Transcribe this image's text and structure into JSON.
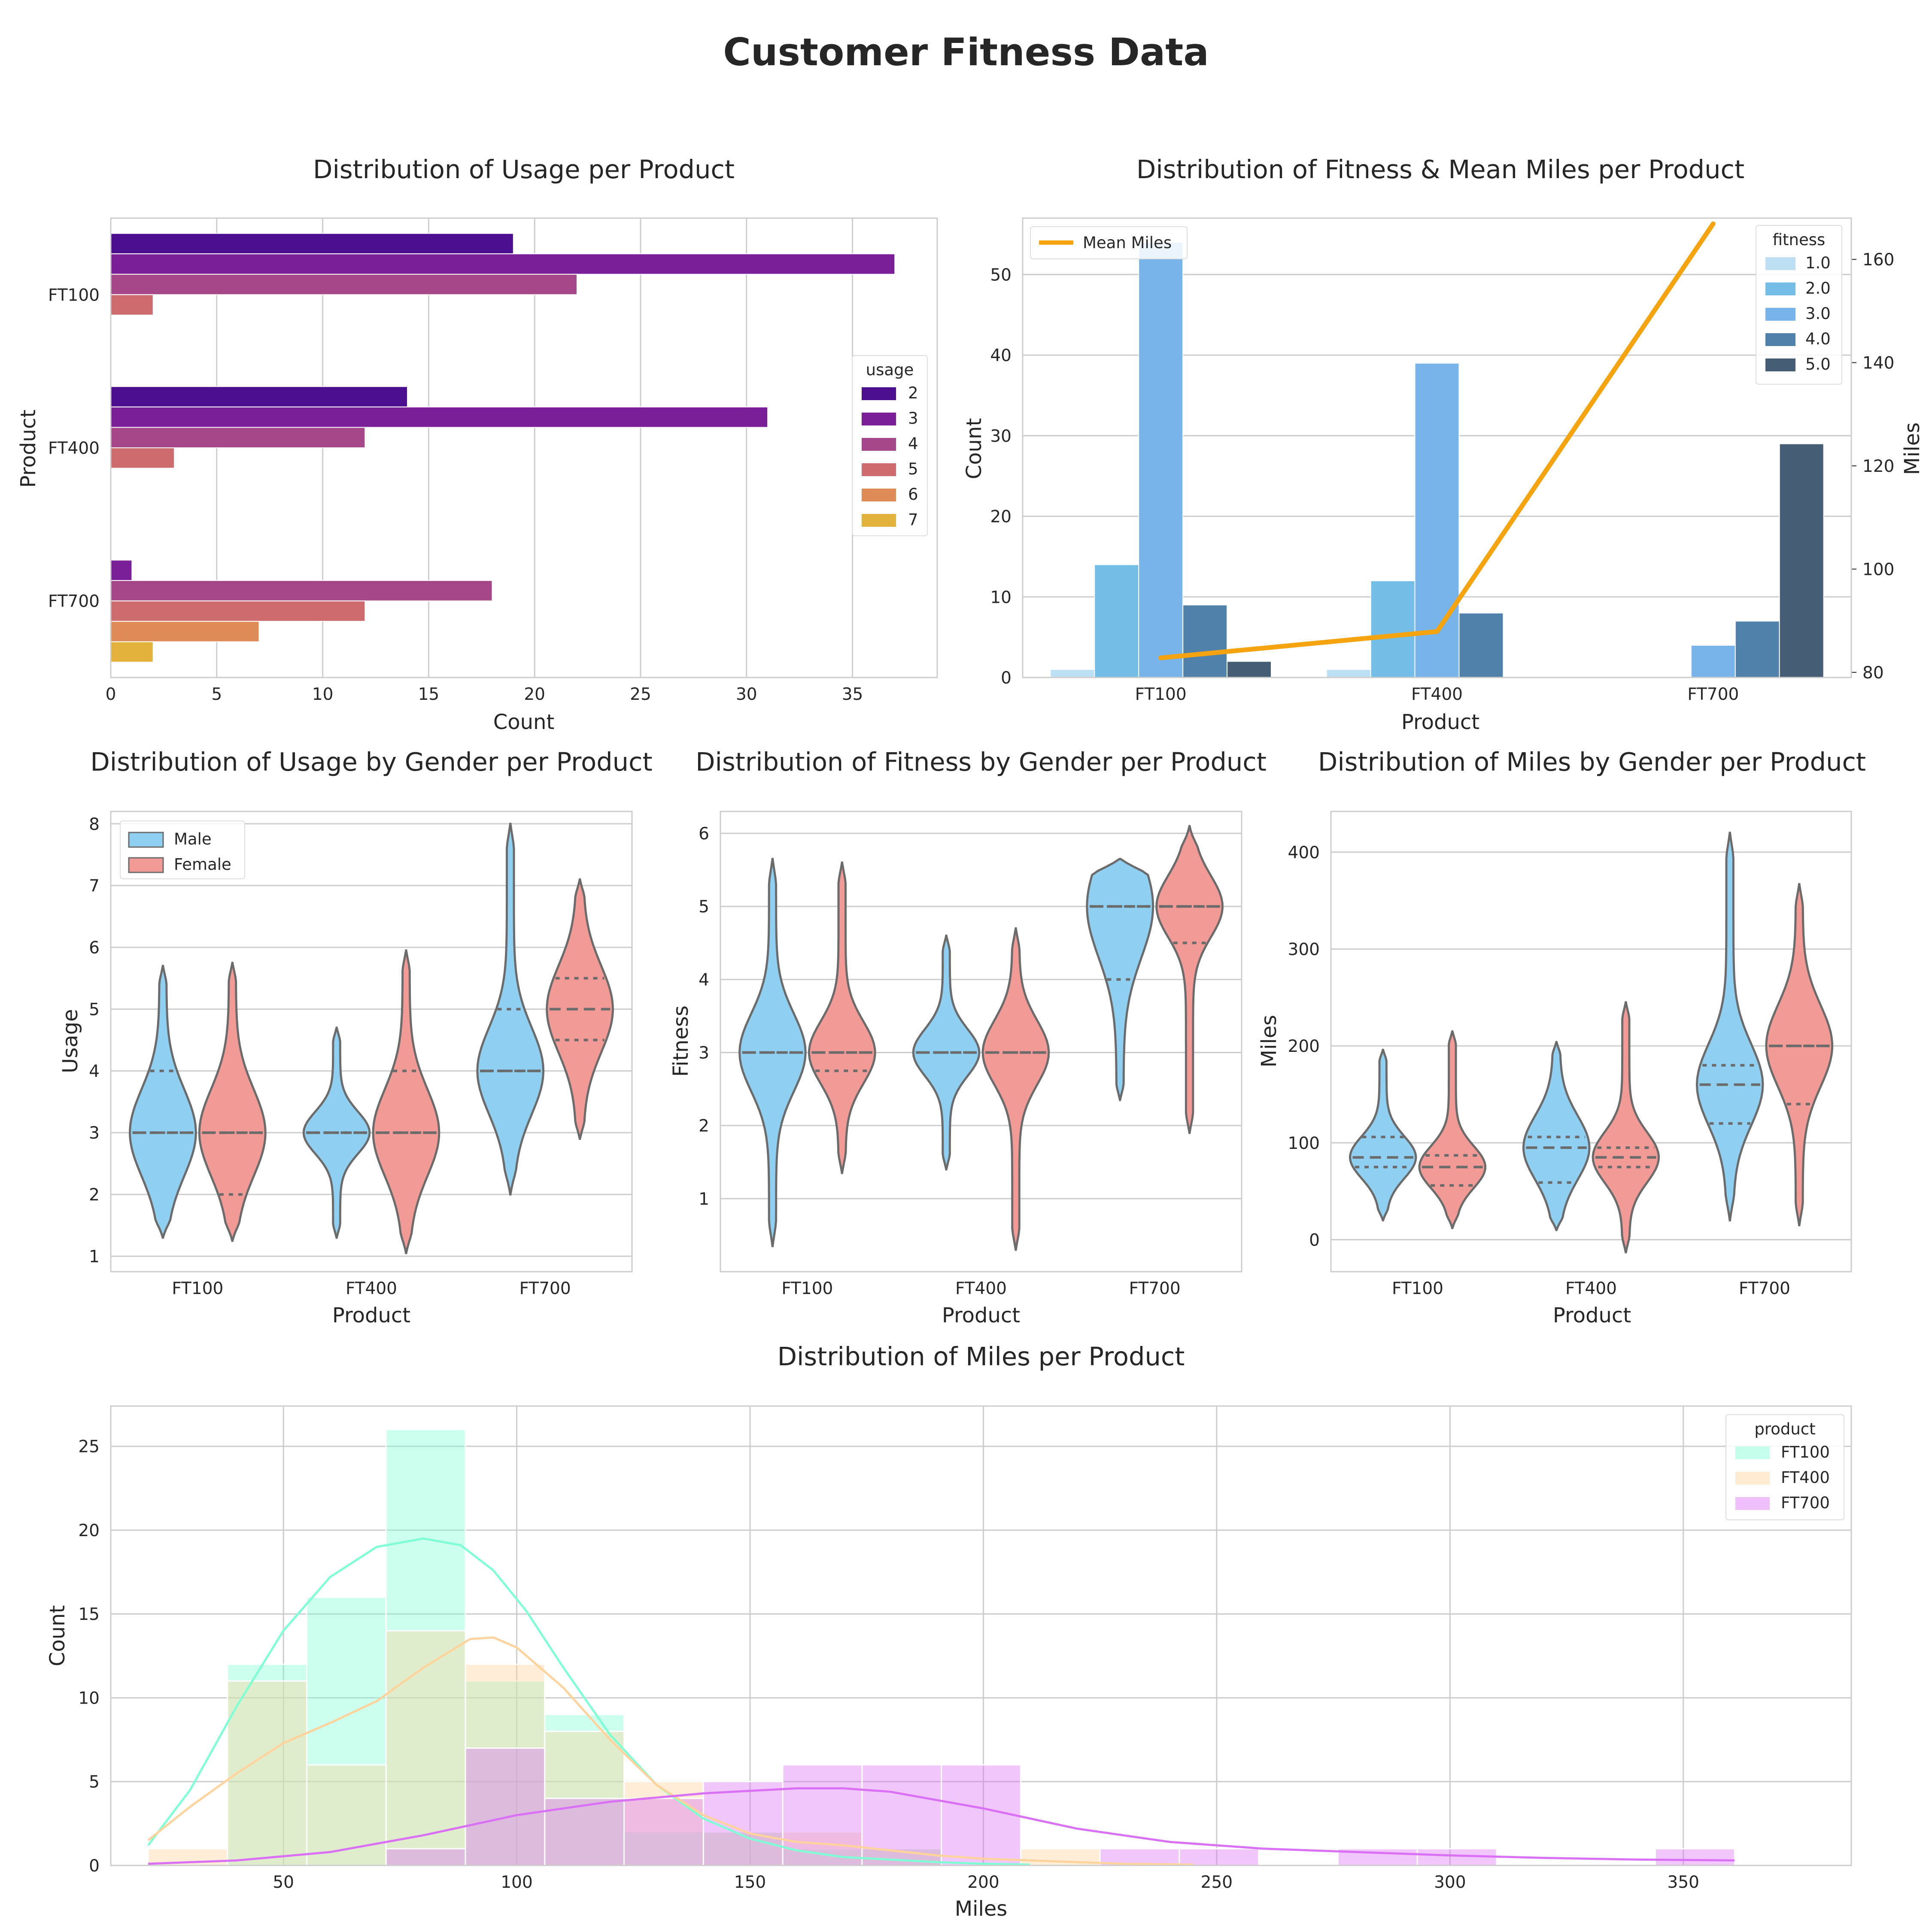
{
  "figure": {
    "title": "Customer Fitness Data"
  },
  "chart_data": [
    {
      "id": "usage_product",
      "type": "bar",
      "orientation": "horizontal",
      "title": "Distribution of Usage per Product",
      "xlabel": "Count",
      "ylabel": "Product",
      "categories": [
        "FT100",
        "FT400",
        "FT700"
      ],
      "xlim": [
        0,
        39
      ],
      "xticks": [
        0,
        5,
        10,
        15,
        20,
        25,
        30,
        35
      ],
      "grid": true,
      "legend": {
        "title": "usage",
        "position": "center-right"
      },
      "series": [
        {
          "name": "2",
          "color": "#4b0f8f",
          "values": [
            19,
            14,
            0
          ]
        },
        {
          "name": "3",
          "color": "#7b1f99",
          "values": [
            37,
            31,
            1
          ]
        },
        {
          "name": "4",
          "color": "#a6478a",
          "values": [
            22,
            12,
            18
          ]
        },
        {
          "name": "5",
          "color": "#cd6b6e",
          "values": [
            2,
            3,
            12
          ]
        },
        {
          "name": "6",
          "color": "#de8b58",
          "values": [
            0,
            0,
            7
          ]
        },
        {
          "name": "7",
          "color": "#e3b23c",
          "values": [
            0,
            0,
            2
          ]
        }
      ]
    },
    {
      "id": "fitness_miles",
      "type": "bar",
      "title": "Distribution of Fitness & Mean Miles per Product",
      "xlabel": "Product",
      "ylabel": "Count",
      "y2label": "Miles",
      "categories": [
        "FT100",
        "FT400",
        "FT700"
      ],
      "ylim": [
        0,
        57
      ],
      "yticks": [
        0,
        10,
        20,
        30,
        40,
        50
      ],
      "y2lim": [
        79,
        168
      ],
      "y2ticks": [
        80,
        100,
        120,
        140,
        160
      ],
      "grid": true,
      "legend": {
        "title": "fitness",
        "position": "top-right"
      },
      "series": [
        {
          "name": "1.0",
          "color": "#bcdff3",
          "values": [
            1,
            1,
            0
          ]
        },
        {
          "name": "2.0",
          "color": "#73bde7",
          "values": [
            14,
            12,
            0
          ]
        },
        {
          "name": "3.0",
          "color": "#78b3e9",
          "values": [
            54,
            39,
            4
          ]
        },
        {
          "name": "4.0",
          "color": "#4f81aa",
          "values": [
            9,
            8,
            7
          ]
        },
        {
          "name": "5.0",
          "color": "#465d76",
          "values": [
            2,
            0,
            29
          ]
        }
      ],
      "line": {
        "name": "Mean Miles",
        "color": "#f5a30e",
        "values": [
          82.8,
          87.9,
          166.9
        ],
        "legend_position": "top-left"
      }
    },
    {
      "id": "usage_gender",
      "type": "violin",
      "title": "Distribution of Usage by Gender per Product",
      "xlabel": "Product",
      "ylabel": "Usage",
      "categories": [
        "FT100",
        "FT400",
        "FT700"
      ],
      "ylim": [
        0.75,
        8.2
      ],
      "yticks": [
        1,
        2,
        3,
        4,
        5,
        6,
        7,
        8
      ],
      "grid": true,
      "legend": {
        "position": "top-left"
      },
      "series": [
        {
          "name": "Male",
          "color": "#8fd0f2",
          "groups": [
            {
              "range": [
                1.3,
                5.7
              ],
              "q1": 3,
              "median": 3,
              "q3": 4
            },
            {
              "range": [
                1.3,
                4.7
              ],
              "q1": 3,
              "median": 3,
              "q3": 3
            },
            {
              "range": [
                2.0,
                8.0
              ],
              "q1": 4,
              "median": 4,
              "q3": 5
            }
          ]
        },
        {
          "name": "Female",
          "color": "#f29a96",
          "groups": [
            {
              "range": [
                1.25,
                5.75
              ],
              "q1": 2,
              "median": 3,
              "q3": 3
            },
            {
              "range": [
                1.05,
                5.95
              ],
              "q1": 3,
              "median": 3,
              "q3": 4
            },
            {
              "range": [
                2.9,
                7.1
              ],
              "q1": 4.5,
              "median": 5,
              "q3": 5.5
            }
          ]
        }
      ]
    },
    {
      "id": "fitness_gender",
      "type": "violin",
      "title": "Distribution of Fitness by Gender per Product",
      "xlabel": "Product",
      "ylabel": "Fitness",
      "categories": [
        "FT100",
        "FT400",
        "FT700"
      ],
      "ylim": [
        0.0,
        6.3
      ],
      "yticks": [
        1,
        2,
        3,
        4,
        5,
        6
      ],
      "grid": true,
      "series": [
        {
          "name": "Male",
          "color": "#8fd0f2",
          "groups": [
            {
              "range": [
                0.35,
                5.65
              ],
              "q1": 3,
              "median": 3,
              "q3": 3
            },
            {
              "range": [
                1.4,
                4.6
              ],
              "q1": 3,
              "median": 3,
              "q3": 3
            },
            {
              "range": [
                2.35,
                5.65
              ],
              "q1": 4,
              "median": 5,
              "q3": 5
            }
          ]
        },
        {
          "name": "Female",
          "color": "#f29a96",
          "groups": [
            {
              "range": [
                1.35,
                5.6
              ],
              "q1": 2.75,
              "median": 3,
              "q3": 3
            },
            {
              "range": [
                0.3,
                4.7
              ],
              "q1": 3,
              "median": 3,
              "q3": 3
            },
            {
              "range": [
                1.9,
                6.1
              ],
              "q1": 4.5,
              "median": 5,
              "q3": 5
            }
          ]
        }
      ]
    },
    {
      "id": "miles_gender",
      "type": "violin",
      "title": "Distribution of Miles by Gender per Product",
      "xlabel": "Product",
      "ylabel": "Miles",
      "categories": [
        "FT100",
        "FT400",
        "FT700"
      ],
      "ylim": [
        -33,
        442
      ],
      "yticks": [
        0,
        100,
        200,
        300,
        400
      ],
      "grid": true,
      "series": [
        {
          "name": "Male",
          "color": "#8fd0f2",
          "groups": [
            {
              "range": [
                20,
                196
              ],
              "q1": 75,
              "median": 85,
              "q3": 106
            },
            {
              "range": [
                10,
                204
              ],
              "q1": 59,
              "median": 95,
              "q3": 106
            },
            {
              "range": [
                20,
                420
              ],
              "q1": 120,
              "median": 160,
              "q3": 180
            }
          ]
        },
        {
          "name": "Female",
          "color": "#f29a96",
          "groups": [
            {
              "range": [
                12,
                215
              ],
              "q1": 56,
              "median": 75,
              "q3": 87
            },
            {
              "range": [
                -13,
                245
              ],
              "q1": 75,
              "median": 85,
              "q3": 95
            },
            {
              "range": [
                15,
                367
              ],
              "q1": 140,
              "median": 200,
              "q3": 200
            }
          ]
        }
      ]
    },
    {
      "id": "miles_hist",
      "type": "histogram",
      "title": "Distribution of Miles per Product",
      "xlabel": "Miles",
      "ylabel": "Count",
      "xlim": [
        13,
        386
      ],
      "xticks": [
        50,
        100,
        150,
        200,
        250,
        300,
        350
      ],
      "ylim": [
        0,
        27.4
      ],
      "yticks": [
        0,
        5,
        10,
        15,
        20,
        25
      ],
      "bin_edges": [
        21,
        38,
        55,
        72,
        89,
        106,
        123,
        140,
        157,
        174,
        191,
        208,
        225,
        242,
        259,
        276,
        293,
        310,
        327,
        344,
        361
      ],
      "grid": true,
      "legend": {
        "title": "product",
        "position": "top-right"
      },
      "series": [
        {
          "name": "FT100",
          "color": "#7fffd4",
          "counts": [
            0,
            12,
            16,
            26,
            11,
            9,
            2,
            2,
            1,
            1,
            0,
            0,
            0,
            0,
            0,
            0,
            0,
            0,
            0,
            0
          ],
          "kde_x": [
            21,
            30,
            40,
            50,
            60,
            70,
            80,
            88,
            95,
            102,
            110,
            120,
            130,
            140,
            150,
            160,
            170,
            180,
            190,
            200,
            210
          ],
          "kde_y": [
            1.2,
            4.5,
            9.5,
            14.0,
            17.2,
            19.0,
            19.5,
            19.1,
            17.6,
            15.2,
            11.8,
            7.8,
            4.8,
            2.8,
            1.6,
            0.9,
            0.5,
            0.35,
            0.2,
            0.1,
            0.05
          ]
        },
        {
          "name": "FT400",
          "color": "#ffd39b",
          "counts": [
            1,
            11,
            6,
            14,
            12,
            8,
            5,
            2,
            2,
            1,
            0,
            1,
            0,
            0,
            0,
            0,
            0,
            0,
            0,
            0
          ],
          "kde_x": [
            21,
            30,
            40,
            50,
            60,
            70,
            80,
            90,
            95,
            100,
            110,
            120,
            130,
            140,
            150,
            160,
            170,
            180,
            190,
            200,
            215,
            230,
            245
          ],
          "kde_y": [
            1.5,
            3.5,
            5.5,
            7.3,
            8.5,
            9.8,
            11.8,
            13.5,
            13.6,
            13.0,
            10.6,
            7.5,
            4.8,
            3.0,
            1.9,
            1.4,
            1.2,
            0.9,
            0.6,
            0.4,
            0.25,
            0.1,
            0.05
          ]
        },
        {
          "name": "FT700",
          "color": "#da70f6",
          "counts": [
            0,
            0,
            0,
            1,
            7,
            4,
            4,
            5,
            6,
            6,
            6,
            0,
            1,
            1,
            0,
            1,
            1,
            0,
            0,
            1
          ],
          "kde_x": [
            21,
            40,
            60,
            80,
            100,
            120,
            140,
            160,
            170,
            180,
            200,
            220,
            240,
            260,
            280,
            300,
            320,
            340,
            361
          ],
          "kde_y": [
            0.1,
            0.3,
            0.8,
            1.8,
            3.0,
            3.8,
            4.3,
            4.6,
            4.6,
            4.4,
            3.4,
            2.2,
            1.4,
            1.0,
            0.8,
            0.6,
            0.45,
            0.35,
            0.3
          ]
        }
      ]
    }
  ]
}
